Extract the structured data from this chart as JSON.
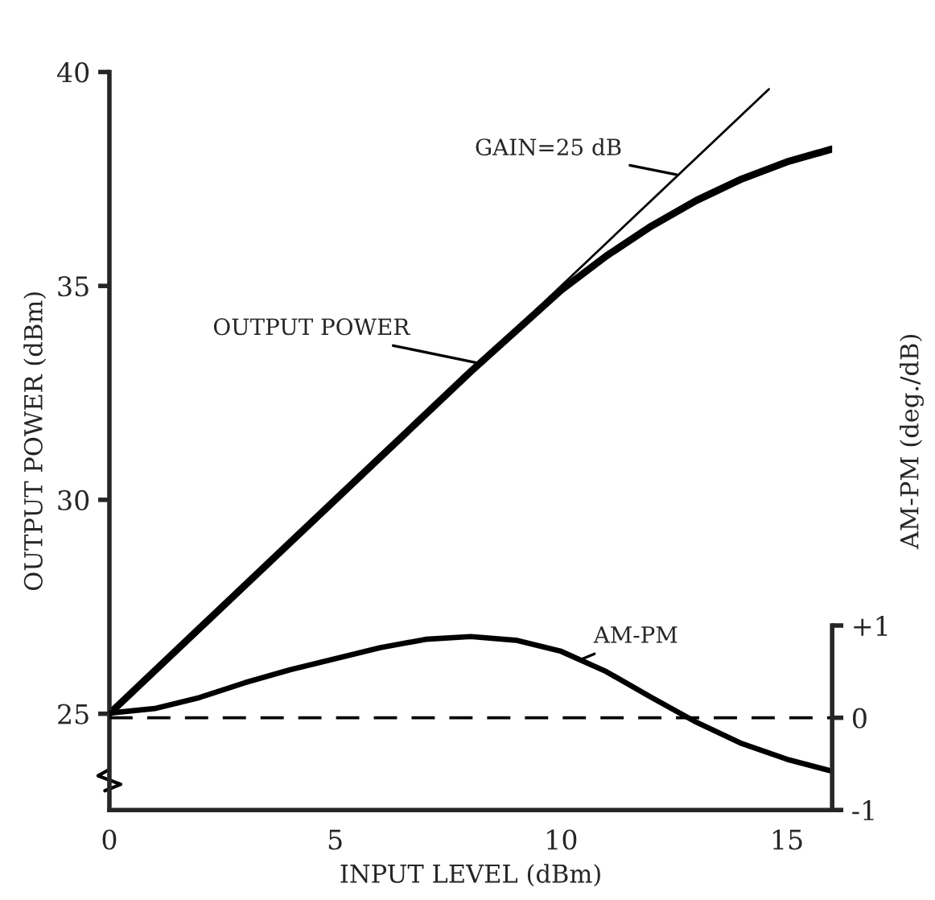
{
  "chart_data": {
    "type": "line",
    "xlabel": "INPUT LEVEL (dBm)",
    "ylabel": "OUTPUT POWER (dBm)",
    "y2label": "AM-PM (deg./dB)",
    "xlim": [
      0,
      16
    ],
    "xticks": [
      0,
      5,
      10,
      15
    ],
    "ylim": [
      22.75,
      40
    ],
    "yticks": [
      25,
      30,
      35,
      40
    ],
    "y2lim": [
      -1,
      7
    ],
    "y2ticks": [
      {
        "value": 1,
        "label": "+1"
      },
      0,
      {
        "value": -1,
        "label": "-1"
      }
    ],
    "grid": false,
    "legend": false,
    "marker": "none",
    "series": [
      {
        "color": "#000000",
        "x": [
          0,
          2,
          4,
          6,
          8,
          10,
          11,
          12,
          13,
          14,
          15,
          16
        ],
        "values": [
          25,
          27,
          29,
          31,
          33,
          34.9,
          35.7,
          36.4,
          37.0,
          37.5,
          37.9,
          38.2
        ]
      },
      {
        "color": "#000000",
        "x": [
          0,
          14.6
        ],
        "values": [
          25,
          39.6
        ]
      },
      {
        "color": "#000000",
        "axis": "y2",
        "x": [
          0,
          1,
          2,
          3,
          4,
          5,
          6,
          7,
          8,
          9,
          10,
          11,
          12,
          13,
          14,
          15,
          16
        ],
        "values": [
          0.05,
          0.1,
          0.22,
          0.38,
          0.52,
          0.64,
          0.76,
          0.85,
          0.88,
          0.84,
          0.72,
          0.5,
          0.22,
          -0.05,
          -0.28,
          -0.45,
          -0.58
        ]
      }
    ],
    "ref_lines": [
      {
        "axis": "y2",
        "value": 0,
        "color": "#000000",
        "line_style": "dashed"
      }
    ],
    "annotations": [
      {
        "text": "GAIN=25 dB",
        "x": 12.55,
        "y": 37.6
      },
      {
        "text": "OUTPUT POWER",
        "x": 8.15,
        "y": 33.2
      },
      "AM-PM"
    ]
  }
}
